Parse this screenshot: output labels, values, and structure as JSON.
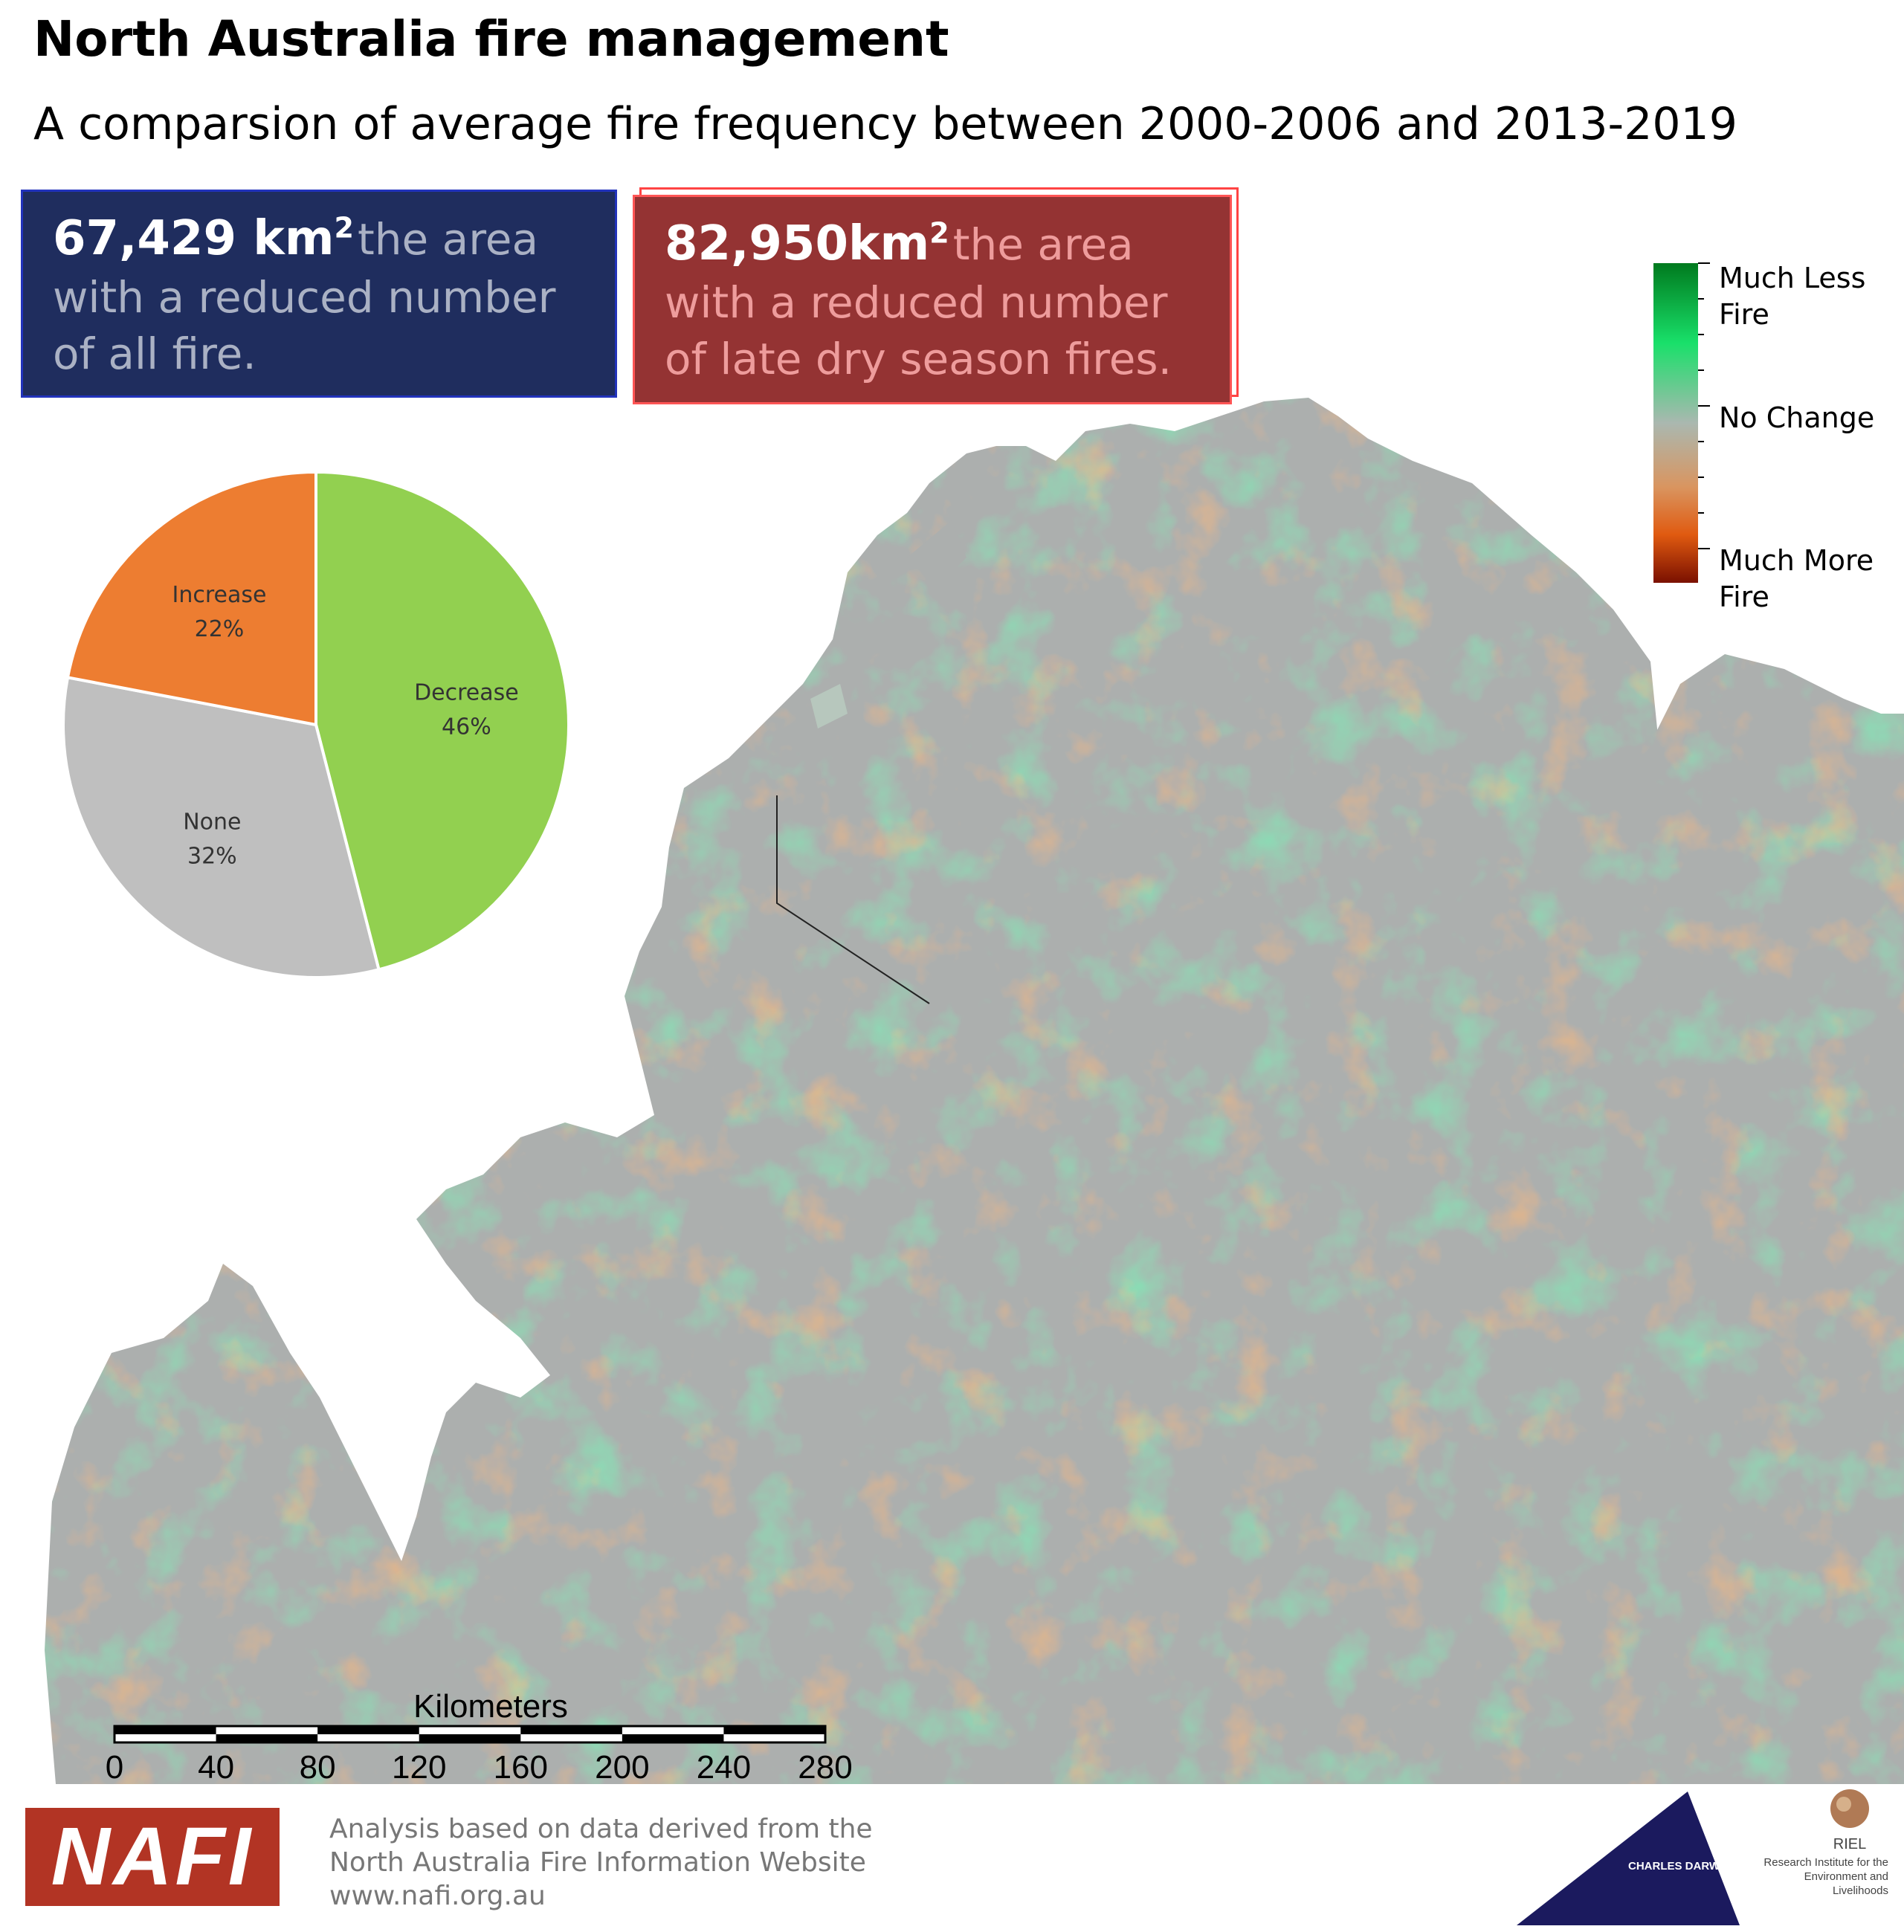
{
  "header": {
    "title": "North Australia fire management",
    "subtitle": "A comparsion of average fire frequency between 2000-2006 and 2013-2019"
  },
  "stats": {
    "all_fire": {
      "value": "67,429  km",
      "superscript": "2",
      "text": "the area with a reduced number of all fire."
    },
    "late_dry_season": {
      "value": "82,950km",
      "superscript": "2",
      "text": "the area with a reduced number of late dry season fires."
    }
  },
  "pie_chart": {
    "slices": [
      {
        "label": "Decrease",
        "percent_text": "46%",
        "value": 46,
        "color": "#92d050"
      },
      {
        "label": "None",
        "percent_text": "32%",
        "value": 32,
        "color": "#bfbfbf"
      },
      {
        "label": "Increase",
        "percent_text": "22%",
        "value": 22,
        "color": "#ed7d31"
      }
    ]
  },
  "legend": {
    "top_label": "Much Less Fire",
    "mid_label": "No Change",
    "bottom_label": "Much More Fire",
    "colors": [
      "#007a1e",
      "#19e06a",
      "#aab8b0",
      "#d99560",
      "#e05a10",
      "#7a1000"
    ]
  },
  "map": {
    "colors": {
      "no_change": "#acafae",
      "less_fire": "#2fd97a",
      "more_fire": "#e07a30",
      "much_more": "#b34a12",
      "much_less": "#0a8a30"
    }
  },
  "scalebar": {
    "unit_label": "Kilometers",
    "ticks": [
      "0",
      "40",
      "80",
      "120",
      "160",
      "200",
      "240",
      "280"
    ]
  },
  "footer": {
    "logo_text": "NAFI",
    "line1": "Analysis based on data derived from the",
    "line2": "North Australia Fire Information Website",
    "line3": "www.nafi.org.au",
    "cdu_name": "CHARLES DARWIN UNIVERSITY",
    "riel_abbr": "RIEL",
    "riel_name": "Research Institute for the Environment and Livelihoods"
  }
}
